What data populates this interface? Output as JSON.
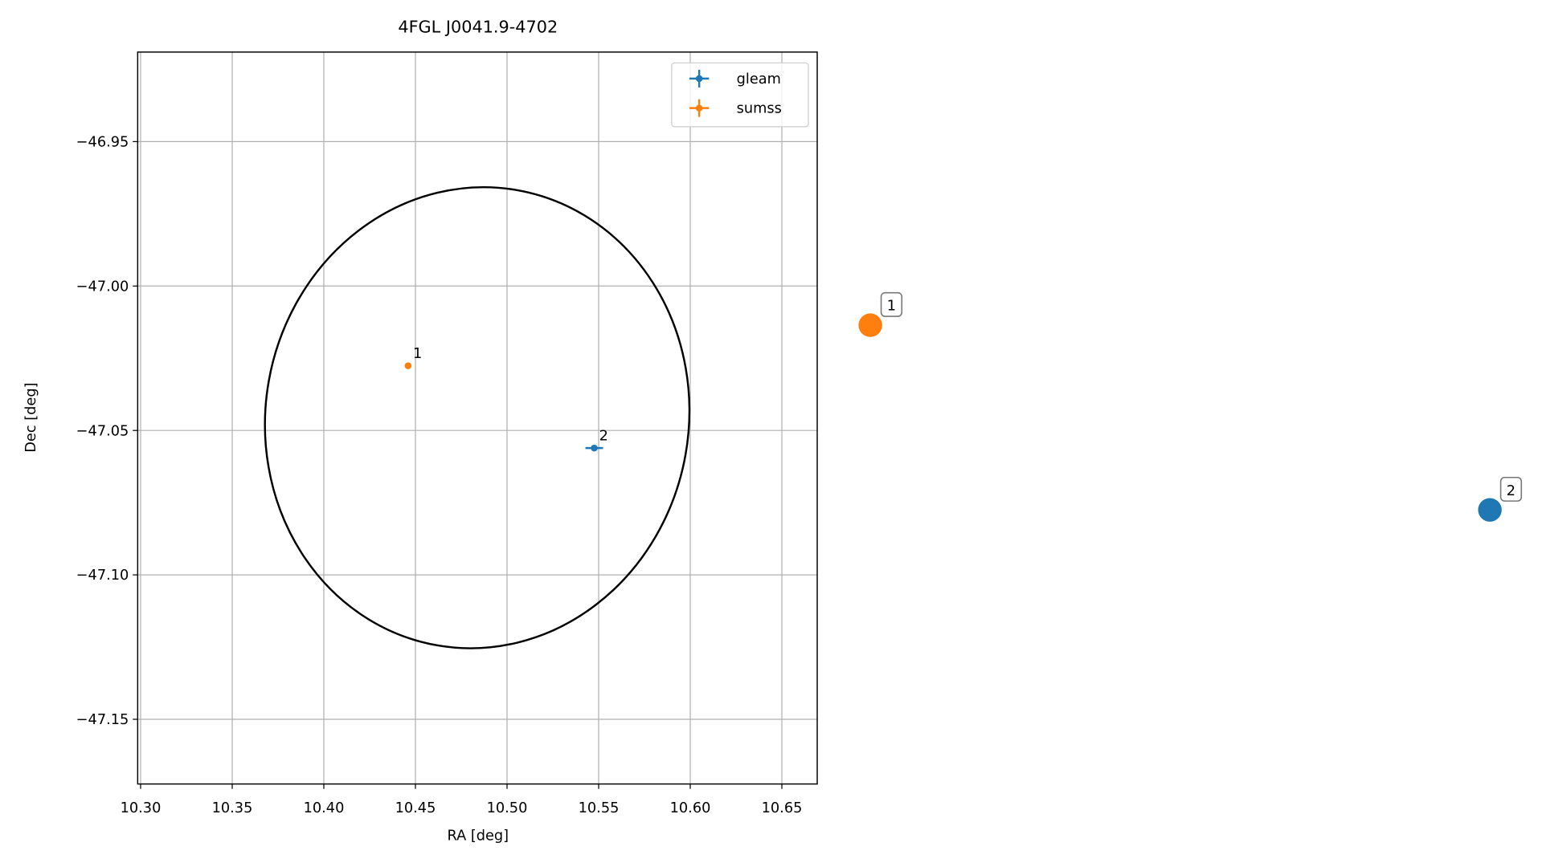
{
  "chart_data": {
    "type": "scatter",
    "title": "4FGL J0041.9-4702",
    "xlabel": "RA [deg]",
    "ylabel": "Dec [deg]",
    "xlim": [
      10.2984,
      10.6693
    ],
    "ylim": [
      -47.1724,
      -46.919
    ],
    "xticks": [
      {
        "value": 10.3,
        "label": "10.30"
      },
      10.35,
      {
        "value": 10.4,
        "label": "10.40"
      },
      10.45,
      {
        "value": 10.5,
        "label": "10.50"
      },
      10.55,
      {
        "value": 10.6,
        "label": "10.60"
      },
      10.65
    ],
    "yticks": [
      {
        "value": -46.95,
        "label": "−46.95"
      },
      {
        "value": -47.0,
        "label": "−47.00"
      },
      {
        "value": -47.05,
        "label": "−47.05"
      },
      {
        "value": -47.1,
        "label": "−47.10"
      },
      {
        "value": -47.15,
        "label": "−47.15"
      }
    ],
    "grid": true,
    "legend": "upper right",
    "ellipse": {
      "ra": 10.4837,
      "dec": -47.0456,
      "width": 0.231,
      "height": 0.16,
      "angle": 10,
      "color": "#000000"
    },
    "series": [
      {
        "name": "gleam",
        "color": "#1f77b4",
        "x": [
          10.5476
        ],
        "y": [
          -47.0561
        ],
        "xerr": [
          0.0048
        ],
        "yerr": [
          0.0005
        ],
        "labels": [
          "2"
        ]
      },
      {
        "name": "sumss",
        "color": "#ff7f0e",
        "x": [
          10.446
        ],
        "y": [
          -47.0276
        ],
        "xerr": [
          0.001
        ],
        "yerr": [
          0.0005
        ],
        "labels": [
          "1"
        ]
      }
    ]
  }
}
